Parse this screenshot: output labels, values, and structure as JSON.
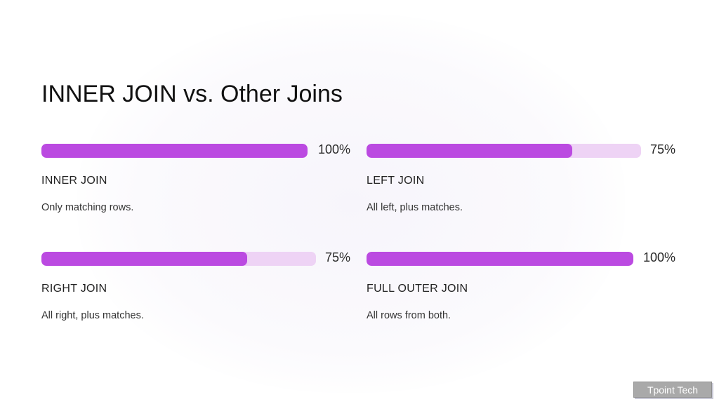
{
  "slide": {
    "title": "INNER JOIN vs. Other Joins"
  },
  "joins": [
    {
      "percent_label": "100%",
      "value": 100,
      "name": "INNER JOIN",
      "description": "Only matching rows."
    },
    {
      "percent_label": "75%",
      "value": 75,
      "name": "LEFT JOIN",
      "description": "All left, plus matches."
    },
    {
      "percent_label": "75%",
      "value": 75,
      "name": "RIGHT JOIN",
      "description": "All right, plus matches."
    },
    {
      "percent_label": "100%",
      "value": 100,
      "name": "FULL OUTER JOIN",
      "description": "All rows from both."
    }
  ],
  "colors": {
    "bar_fill": "#bb4ae1",
    "bar_track": "#eed3f5"
  },
  "footer": {
    "badge": "Tpoint Tech"
  }
}
